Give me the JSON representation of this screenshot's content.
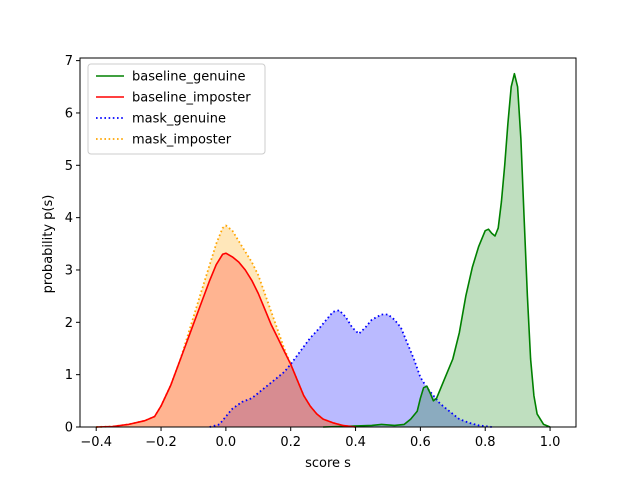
{
  "chart_data": {
    "type": "area",
    "xlabel": "score s",
    "ylabel": "probability p(s)",
    "xlim": [
      -0.45,
      1.08
    ],
    "ylim": [
      0,
      7.05
    ],
    "x_ticks": [
      -0.4,
      -0.2,
      0.0,
      0.2,
      0.4,
      0.6,
      0.8,
      1.0
    ],
    "x_tick_labels": [
      "−0.4",
      "−0.2",
      "0.0",
      "0.2",
      "0.4",
      "0.6",
      "0.8",
      "1.0"
    ],
    "y_ticks": [
      0,
      1,
      2,
      3,
      4,
      5,
      6,
      7
    ],
    "y_tick_labels": [
      "0",
      "1",
      "2",
      "3",
      "4",
      "5",
      "6",
      "7"
    ],
    "legend_position": "upper-left",
    "series": [
      {
        "name": "mask_genuine",
        "line_style": "dotted",
        "color": "#0000ff",
        "fill": "#0000ff",
        "fill_opacity": 0.27,
        "points": [
          [
            -0.05,
            0
          ],
          [
            -0.02,
            0.05
          ],
          [
            0.0,
            0.2
          ],
          [
            0.02,
            0.35
          ],
          [
            0.05,
            0.48
          ],
          [
            0.08,
            0.55
          ],
          [
            0.1,
            0.65
          ],
          [
            0.13,
            0.8
          ],
          [
            0.15,
            0.9
          ],
          [
            0.18,
            1.05
          ],
          [
            0.2,
            1.2
          ],
          [
            0.23,
            1.45
          ],
          [
            0.26,
            1.7
          ],
          [
            0.29,
            1.9
          ],
          [
            0.31,
            2.05
          ],
          [
            0.33,
            2.2
          ],
          [
            0.35,
            2.23
          ],
          [
            0.37,
            2.1
          ],
          [
            0.39,
            1.9
          ],
          [
            0.41,
            1.78
          ],
          [
            0.43,
            1.9
          ],
          [
            0.45,
            2.05
          ],
          [
            0.48,
            2.15
          ],
          [
            0.5,
            2.15
          ],
          [
            0.52,
            2.05
          ],
          [
            0.54,
            1.9
          ],
          [
            0.56,
            1.6
          ],
          [
            0.58,
            1.3
          ],
          [
            0.6,
            0.95
          ],
          [
            0.62,
            0.75
          ],
          [
            0.64,
            0.6
          ],
          [
            0.66,
            0.45
          ],
          [
            0.68,
            0.35
          ],
          [
            0.7,
            0.25
          ],
          [
            0.72,
            0.15
          ],
          [
            0.75,
            0.08
          ],
          [
            0.78,
            0.03
          ],
          [
            0.82,
            0
          ]
        ]
      },
      {
        "name": "mask_imposter",
        "line_style": "dotted",
        "color": "#ffa500",
        "fill": "#ffa500",
        "fill_opacity": 0.27,
        "points": [
          [
            -0.4,
            0
          ],
          [
            -0.35,
            0.01
          ],
          [
            -0.3,
            0.05
          ],
          [
            -0.25,
            0.12
          ],
          [
            -0.22,
            0.2
          ],
          [
            -0.2,
            0.4
          ],
          [
            -0.17,
            0.8
          ],
          [
            -0.14,
            1.3
          ],
          [
            -0.11,
            1.9
          ],
          [
            -0.08,
            2.5
          ],
          [
            -0.05,
            3.1
          ],
          [
            -0.03,
            3.5
          ],
          [
            -0.01,
            3.8
          ],
          [
            0.0,
            3.85
          ],
          [
            0.02,
            3.75
          ],
          [
            0.04,
            3.55
          ],
          [
            0.06,
            3.35
          ],
          [
            0.08,
            3.15
          ],
          [
            0.1,
            2.9
          ],
          [
            0.12,
            2.55
          ],
          [
            0.14,
            2.2
          ],
          [
            0.16,
            1.85
          ],
          [
            0.18,
            1.5
          ],
          [
            0.2,
            1.2
          ],
          [
            0.22,
            0.9
          ],
          [
            0.24,
            0.6
          ],
          [
            0.26,
            0.4
          ],
          [
            0.28,
            0.25
          ],
          [
            0.3,
            0.15
          ],
          [
            0.33,
            0.08
          ],
          [
            0.36,
            0.03
          ],
          [
            0.4,
            0
          ]
        ]
      },
      {
        "name": "baseline_genuine",
        "line_style": "solid",
        "color": "#008000",
        "fill": "#008000",
        "fill_opacity": 0.25,
        "points": [
          [
            0.3,
            0
          ],
          [
            0.35,
            0.01
          ],
          [
            0.45,
            0.03
          ],
          [
            0.48,
            0.05
          ],
          [
            0.52,
            0.03
          ],
          [
            0.55,
            0.05
          ],
          [
            0.57,
            0.15
          ],
          [
            0.59,
            0.3
          ],
          [
            0.6,
            0.55
          ],
          [
            0.61,
            0.75
          ],
          [
            0.62,
            0.78
          ],
          [
            0.63,
            0.65
          ],
          [
            0.64,
            0.5
          ],
          [
            0.65,
            0.55
          ],
          [
            0.66,
            0.7
          ],
          [
            0.68,
            1.0
          ],
          [
            0.7,
            1.3
          ],
          [
            0.72,
            1.8
          ],
          [
            0.74,
            2.5
          ],
          [
            0.76,
            3.05
          ],
          [
            0.78,
            3.45
          ],
          [
            0.8,
            3.75
          ],
          [
            0.81,
            3.78
          ],
          [
            0.82,
            3.7
          ],
          [
            0.83,
            3.65
          ],
          [
            0.84,
            3.8
          ],
          [
            0.85,
            4.3
          ],
          [
            0.86,
            5.0
          ],
          [
            0.87,
            5.8
          ],
          [
            0.88,
            6.5
          ],
          [
            0.89,
            6.75
          ],
          [
            0.9,
            6.5
          ],
          [
            0.91,
            5.5
          ],
          [
            0.92,
            4.0
          ],
          [
            0.93,
            2.5
          ],
          [
            0.94,
            1.3
          ],
          [
            0.95,
            0.6
          ],
          [
            0.96,
            0.25
          ],
          [
            0.98,
            0.05
          ],
          [
            1.0,
            0
          ]
        ]
      },
      {
        "name": "baseline_imposter",
        "line_style": "solid",
        "color": "#ff0000",
        "fill": "#ff0000",
        "fill_opacity": 0.22,
        "points": [
          [
            -0.4,
            0
          ],
          [
            -0.35,
            0.01
          ],
          [
            -0.3,
            0.05
          ],
          [
            -0.25,
            0.12
          ],
          [
            -0.22,
            0.2
          ],
          [
            -0.2,
            0.4
          ],
          [
            -0.17,
            0.8
          ],
          [
            -0.14,
            1.3
          ],
          [
            -0.11,
            1.8
          ],
          [
            -0.08,
            2.3
          ],
          [
            -0.05,
            2.8
          ],
          [
            -0.03,
            3.1
          ],
          [
            -0.01,
            3.3
          ],
          [
            0.0,
            3.32
          ],
          [
            0.02,
            3.25
          ],
          [
            0.04,
            3.15
          ],
          [
            0.06,
            3.0
          ],
          [
            0.08,
            2.8
          ],
          [
            0.1,
            2.55
          ],
          [
            0.12,
            2.25
          ],
          [
            0.14,
            1.95
          ],
          [
            0.16,
            1.7
          ],
          [
            0.18,
            1.45
          ],
          [
            0.2,
            1.2
          ],
          [
            0.22,
            0.9
          ],
          [
            0.24,
            0.6
          ],
          [
            0.26,
            0.4
          ],
          [
            0.28,
            0.25
          ],
          [
            0.3,
            0.15
          ],
          [
            0.33,
            0.08
          ],
          [
            0.36,
            0.03
          ],
          [
            0.4,
            0
          ]
        ]
      }
    ],
    "legend": [
      {
        "label": "baseline_genuine",
        "color": "#008000",
        "line_style": "solid"
      },
      {
        "label": "baseline_imposter",
        "color": "#ff0000",
        "line_style": "solid"
      },
      {
        "label": "mask_genuine",
        "color": "#0000ff",
        "line_style": "dotted"
      },
      {
        "label": "mask_imposter",
        "color": "#ffa500",
        "line_style": "dotted"
      }
    ]
  }
}
